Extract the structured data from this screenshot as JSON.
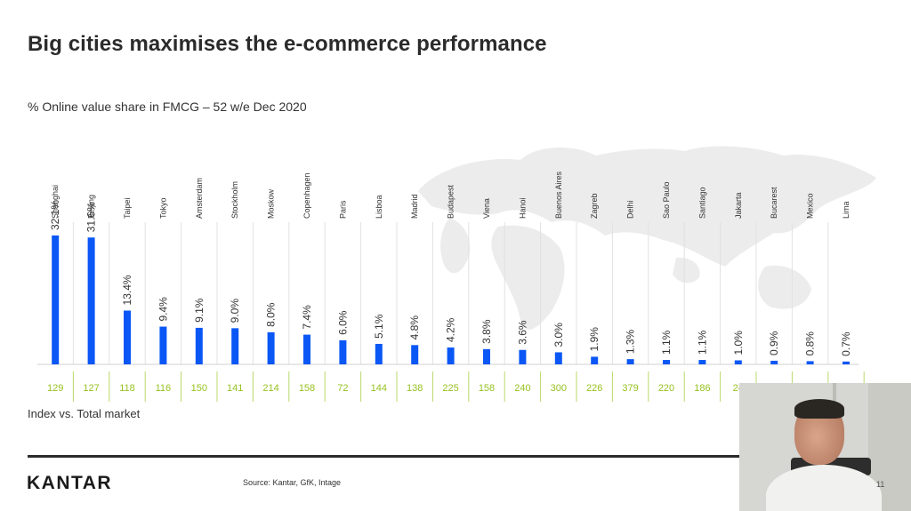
{
  "slide": {
    "title": "Big cities maximises the e-commerce performance",
    "subtitle": "% Online value share in FMCG – 52 w/e Dec 2020",
    "index_label": "Index vs. Total market",
    "logo": "KANTAR",
    "source": "Source: Kantar, GfK, Intage",
    "page_number": "11"
  },
  "colors": {
    "bar": "#0a57f5",
    "index_normal": "#96c11f",
    "index_low": "#e03030",
    "divider": "#e2e2e2",
    "index_divider": "#b9d86a",
    "map": "#e9e9e9"
  },
  "chart_data": {
    "type": "bar",
    "categories": [
      "Shanghai",
      "Beijing",
      "Taipei",
      "Tokyo",
      "Amsterdam",
      "Stockholm",
      "Moskow",
      "Copenhagen",
      "Paris",
      "Lisboa",
      "Madrid",
      "Budapest",
      "Viena",
      "Hanoi",
      "Buenos Aires",
      "Zagreb",
      "Delhi",
      "Sao Paulo",
      "Santiago",
      "Jakarta",
      "Bucarest",
      "Mexico",
      "Lima"
    ],
    "values": [
      32.1,
      31.6,
      13.4,
      9.4,
      9.1,
      9.0,
      8.0,
      7.4,
      6.0,
      5.1,
      4.8,
      4.2,
      3.8,
      3.6,
      3.0,
      1.9,
      1.3,
      1.1,
      1.1,
      1.0,
      0.9,
      0.8,
      0.7
    ],
    "value_labels": [
      "32.1%",
      "31.6%",
      "13.4%",
      "9.4%",
      "9.1%",
      "9.0%",
      "8.0%",
      "7.4%",
      "6.0%",
      "5.1%",
      "4.8%",
      "4.2%",
      "3.8%",
      "3.6%",
      "3.0%",
      "1.9%",
      "1.3%",
      "1.1%",
      "1.1%",
      "1.0%",
      "0.9%",
      "0.8%",
      "0.7%"
    ],
    "index": [
      "129",
      "127",
      "118",
      "116",
      "150",
      "141",
      "214",
      "158",
      "72",
      "144",
      "138",
      "225",
      "158",
      "240",
      "300",
      "226",
      "379",
      "220",
      "186",
      "24",
      "",
      "",
      ""
    ],
    "index_low_threshold": 100,
    "ylim": [
      0,
      32.1
    ],
    "grid": false,
    "legend": "none"
  }
}
